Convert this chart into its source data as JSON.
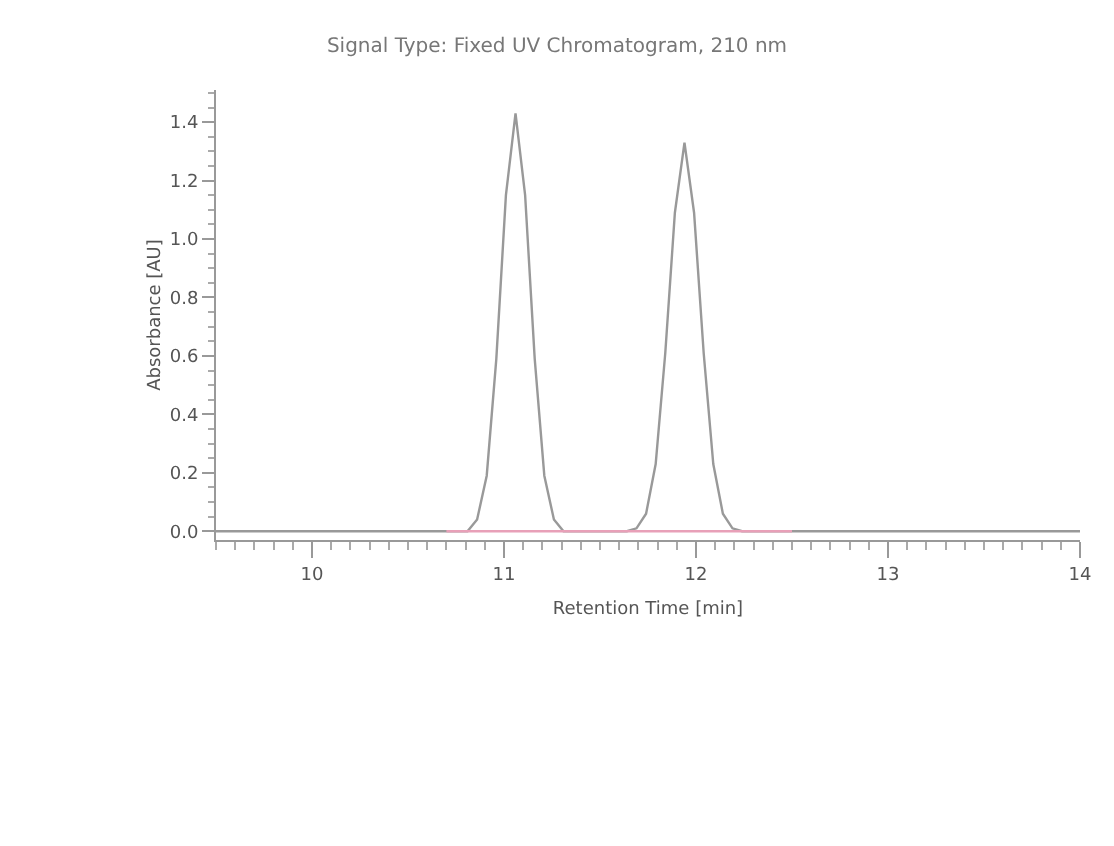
{
  "chart_data": {
    "type": "line",
    "title": "Signal Type: Fixed UV Chromatogram, 210 nm",
    "xlabel": "Retention Time [min]",
    "ylabel": "Absorbance [AU]",
    "series": [
      {
        "color": "#999999",
        "x": [
          9.5,
          10.81,
          10.86,
          10.91,
          10.96,
          11.01,
          11.06,
          11.11,
          11.16,
          11.21,
          11.26,
          11.31,
          11.64,
          11.69,
          11.74,
          11.79,
          11.84,
          11.89,
          11.94,
          11.99,
          12.04,
          12.09,
          12.14,
          12.19,
          12.24,
          14
        ],
        "values": [
          0,
          0,
          0.04,
          0.19,
          0.59,
          1.15,
          1.43,
          1.15,
          0.59,
          0.19,
          0.04,
          0,
          0,
          0.01,
          0.06,
          0.23,
          0.61,
          1.09,
          1.33,
          1.09,
          0.61,
          0.23,
          0.06,
          0.01,
          0,
          0
        ]
      },
      {
        "color": "#e8a0b8",
        "x": [
          10.7,
          12.5
        ],
        "values": [
          0,
          0
        ]
      }
    ],
    "xlim": [
      9.5,
      14
    ],
    "xticks": [
      10,
      11,
      12,
      13,
      14
    ],
    "ylim": [
      -0.03,
      1.51
    ],
    "yticks": [
      {
        "value": 0,
        "label": "0.0"
      },
      0.2,
      0.4,
      0.6,
      0.8,
      {
        "value": 1,
        "label": "1.0"
      },
      1.2,
      1.4
    ],
    "grid": false,
    "marker": "none",
    "line_style": "solid"
  }
}
